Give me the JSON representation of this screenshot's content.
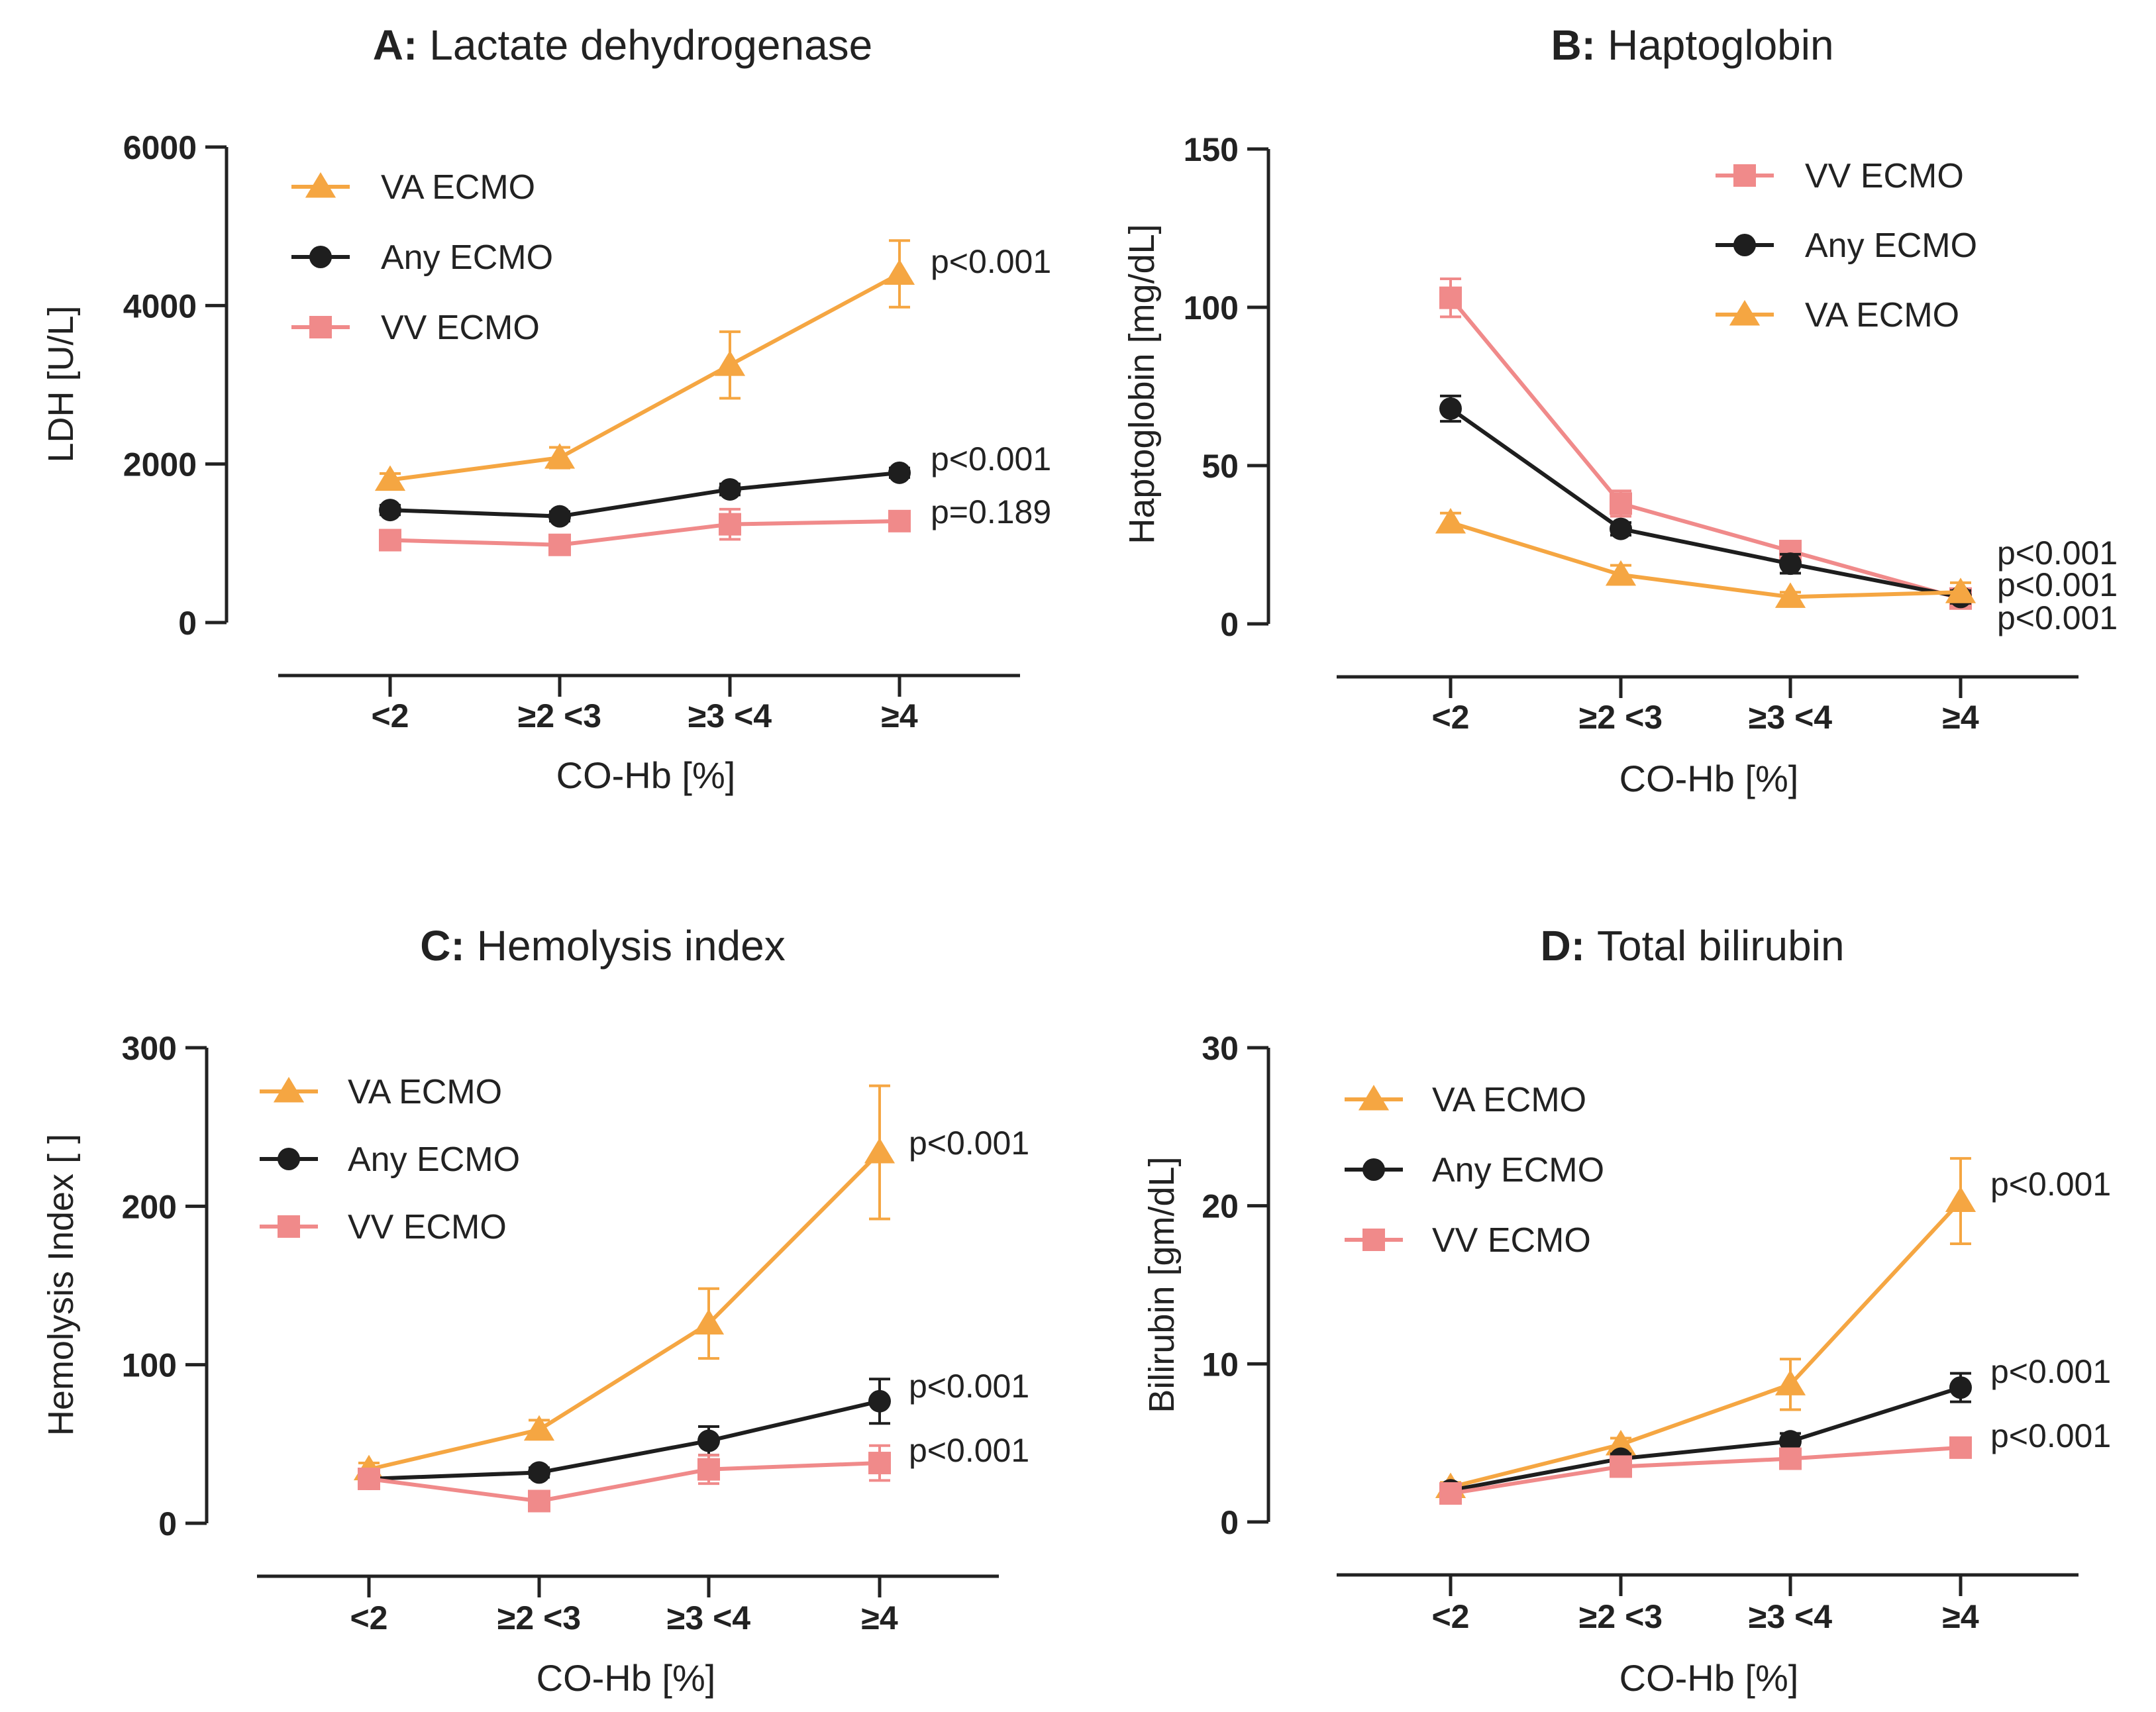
{
  "colors": {
    "va": "#F5A642",
    "any": "#1E1E1E",
    "vv": "#F08A8A",
    "axis": "#222222"
  },
  "chart_data": [
    {
      "type": "line",
      "title_prefix": "A:",
      "title": "Lactate dehydrogenase",
      "xlabel": "CO-Hb [%]",
      "ylabel": "LDH [U/L]",
      "ylim": [
        0,
        6000
      ],
      "yticks": [
        "0",
        "2000",
        "4000",
        "6000"
      ],
      "categories": [
        "<2",
        "≥2 <3",
        "≥3 <4",
        "≥4"
      ],
      "legend": [
        "VA ECMO",
        "Any ECMO",
        "VV ECMO"
      ],
      "series": [
        {
          "name": "VA ECMO",
          "key": "va",
          "marker": "triangle",
          "values": [
            1800,
            2080,
            3250,
            4400
          ],
          "errors": [
            80,
            130,
            420,
            420
          ],
          "p": "p<0.001"
        },
        {
          "name": "Any ECMO",
          "key": "any",
          "marker": "circle",
          "values": [
            1420,
            1340,
            1680,
            1890
          ],
          "errors": [
            60,
            60,
            70,
            60
          ],
          "p": "p<0.001"
        },
        {
          "name": "VV ECMO",
          "key": "vv",
          "marker": "square",
          "values": [
            1040,
            980,
            1240,
            1280
          ],
          "errors": [
            60,
            60,
            190,
            80
          ],
          "p": "p=0.189"
        }
      ]
    },
    {
      "type": "line",
      "title_prefix": "B:",
      "title": "Haptoglobin",
      "xlabel": "CO-Hb [%]",
      "ylabel": "Haptoglobin [mg/dL]",
      "ylim": [
        0,
        150
      ],
      "yticks": [
        "0",
        "50",
        "100",
        "150"
      ],
      "categories": [
        "<2",
        "≥2 <3",
        "≥3 <4",
        "≥4"
      ],
      "legend": [
        "VV ECMO",
        "Any ECMO",
        "VA ECMO"
      ],
      "series": [
        {
          "name": "VV ECMO",
          "key": "vv",
          "marker": "square",
          "values": [
            103,
            38,
            23,
            8
          ],
          "errors": [
            6,
            4,
            3,
            2
          ],
          "p": "p<0.001"
        },
        {
          "name": "Any ECMO",
          "key": "any",
          "marker": "circle",
          "values": [
            68,
            30,
            19,
            8.5
          ],
          "errors": [
            4,
            2,
            3,
            2
          ],
          "p": "p<0.001"
        },
        {
          "name": "VA ECMO",
          "key": "va",
          "marker": "triangle",
          "values": [
            32,
            15.5,
            8.5,
            10
          ],
          "errors": [
            3,
            3,
            1.5,
            3
          ],
          "p": "p<0.001"
        }
      ]
    },
    {
      "type": "line",
      "title_prefix": "C:",
      "title": "Hemolysis index",
      "xlabel": "CO-Hb [%]",
      "ylabel": "Hemolysis Index [ ]",
      "ylim": [
        0,
        300
      ],
      "yticks": [
        "0",
        "100",
        "200",
        "300"
      ],
      "categories": [
        "<2",
        "≥2 <3",
        "≥3 <4",
        "≥4"
      ],
      "legend": [
        "VA ECMO",
        "Any ECMO",
        "VV ECMO"
      ],
      "series": [
        {
          "name": "VA ECMO",
          "key": "va",
          "marker": "triangle",
          "values": [
            34,
            59,
            126,
            234
          ],
          "errors": [
            4,
            6,
            22,
            42
          ],
          "p": "p<0.001"
        },
        {
          "name": "Any ECMO",
          "key": "any",
          "marker": "circle",
          "values": [
            28,
            32,
            52,
            77
          ],
          "errors": [
            3,
            3,
            9,
            14
          ],
          "p": "p<0.001"
        },
        {
          "name": "VV ECMO",
          "key": "vv",
          "marker": "square",
          "values": [
            28,
            14,
            34,
            38
          ],
          "errors": [
            3,
            3,
            9,
            11
          ],
          "p": "p<0.001"
        }
      ]
    },
    {
      "type": "line",
      "title_prefix": "D:",
      "title": "Total bilirubin",
      "xlabel": "CO-Hb [%]",
      "ylabel": "Bilirubin [gm/dL]",
      "ylim": [
        0,
        30
      ],
      "yticks": [
        "0",
        "10",
        "20",
        "30"
      ],
      "categories": [
        "<2",
        "≥2 <3",
        "≥3 <4",
        "≥4"
      ],
      "legend": [
        "VA ECMO",
        "Any ECMO",
        "VV ECMO"
      ],
      "series": [
        {
          "name": "VA ECMO",
          "key": "va",
          "marker": "triangle",
          "values": [
            2.2,
            4.9,
            8.7,
            20.3
          ],
          "errors": [
            0.3,
            0.4,
            1.6,
            2.7
          ],
          "p": "p<0.001"
        },
        {
          "name": "Any ECMO",
          "key": "any",
          "marker": "circle",
          "values": [
            2.0,
            4.0,
            5.1,
            8.5
          ],
          "errors": [
            0.2,
            0.3,
            0.5,
            0.9
          ],
          "p": "p<0.001"
        },
        {
          "name": "VV ECMO",
          "key": "vv",
          "marker": "square",
          "values": [
            1.8,
            3.5,
            4.0,
            4.7
          ],
          "errors": [
            0.2,
            0.3,
            0.3,
            0.3
          ],
          "p": "p<0.001"
        }
      ]
    }
  ]
}
